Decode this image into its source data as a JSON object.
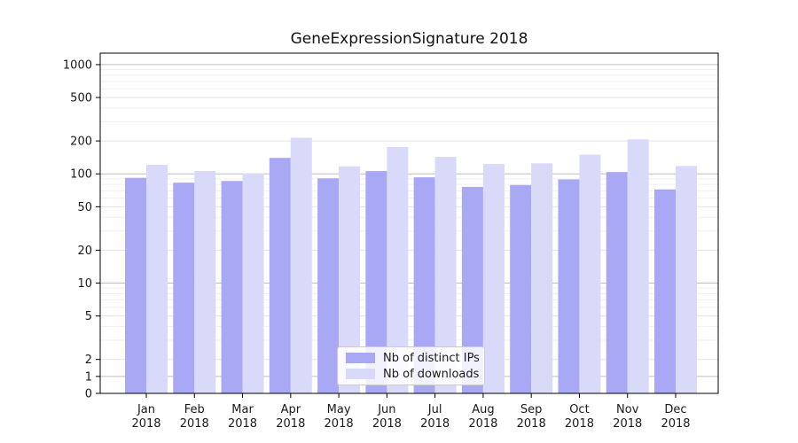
{
  "chart_data": {
    "type": "bar",
    "title": "GeneExpressionSignature 2018",
    "year": "2018",
    "categories": [
      "Jan",
      "Feb",
      "Mar",
      "Apr",
      "May",
      "Jun",
      "Jul",
      "Aug",
      "Sep",
      "Oct",
      "Nov",
      "Dec"
    ],
    "series": [
      {
        "name": "Nb of distinct IPs",
        "color": "#a8a8f5",
        "values": [
          92,
          83,
          86,
          140,
          91,
          106,
          93,
          76,
          79,
          89,
          104,
          72
        ]
      },
      {
        "name": "Nb of downloads",
        "color": "#d9d9fa",
        "values": [
          121,
          106,
          101,
          214,
          117,
          176,
          143,
          123,
          125,
          150,
          207,
          118
        ]
      }
    ],
    "xlabel": "",
    "ylabel": "",
    "y_scale": "symlog (linear below 2, logarithmic above)",
    "yticks": [
      0,
      1,
      2,
      5,
      10,
      20,
      50,
      100,
      200,
      500,
      1000
    ],
    "ylim": [
      0,
      1270
    ],
    "grid": true,
    "legend_position": "inside lower-center"
  },
  "colors": {
    "bar_distinct_ips": "#a8a8f5",
    "bar_downloads": "#d9d9fa",
    "grid_major": "#bdbdbd",
    "grid_labeled": "#e3e3e3",
    "grid_minor": "#f1f1f1",
    "axis": "#000000",
    "text": "#1a1a1a"
  }
}
